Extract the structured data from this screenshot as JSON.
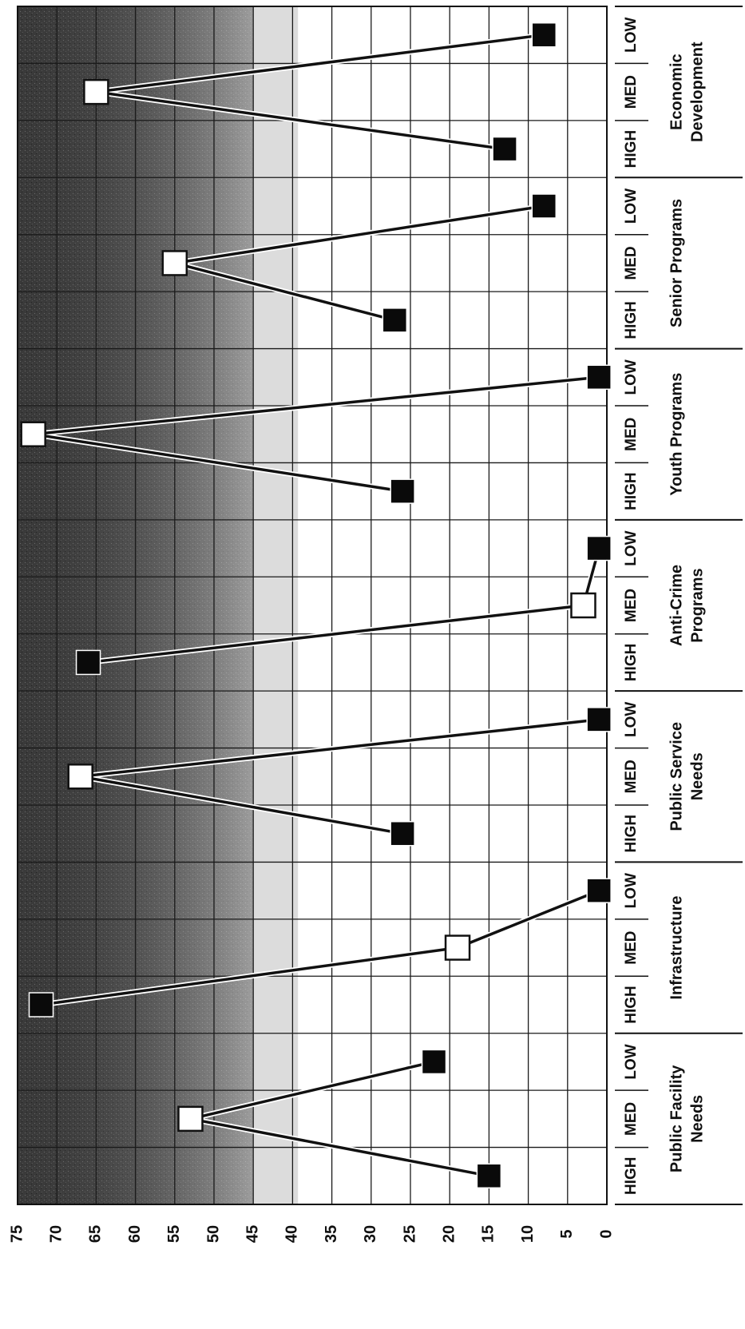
{
  "chart_data": {
    "type": "line",
    "orientation": "rotated-90",
    "value_axis": {
      "ticks": [
        "75",
        "70",
        "65",
        "60",
        "55",
        "50",
        "45",
        "40",
        "35",
        "30",
        "25",
        "20",
        "15",
        "10",
        "5",
        "0"
      ],
      "range": [
        0,
        75
      ]
    },
    "priority_labels": [
      "HIGH",
      "MED",
      "LOW"
    ],
    "groups": [
      {
        "label_lines": [
          "Public Facility",
          "Needs"
        ],
        "values": [
          15,
          53,
          22
        ]
      },
      {
        "label_lines": [
          "Infrastructure"
        ],
        "values": [
          72,
          19,
          1
        ]
      },
      {
        "label_lines": [
          "Public Service",
          "Needs"
        ],
        "values": [
          26,
          67,
          1
        ]
      },
      {
        "label_lines": [
          "Anti-Crime",
          "Programs"
        ],
        "values": [
          66,
          3,
          1
        ]
      },
      {
        "label_lines": [
          "Youth Programs"
        ],
        "values": [
          26,
          73,
          1
        ]
      },
      {
        "label_lines": [
          "Senior Programs"
        ],
        "values": [
          27,
          55,
          8
        ]
      },
      {
        "label_lines": [
          "Economic",
          "Development"
        ],
        "values": [
          13,
          65,
          8
        ]
      }
    ],
    "marker_styles": {
      "HIGH": "filled",
      "MED": "hollow",
      "LOW": "filled"
    },
    "shaded_region": {
      "from": 45,
      "to": 75
    },
    "grid": true
  }
}
